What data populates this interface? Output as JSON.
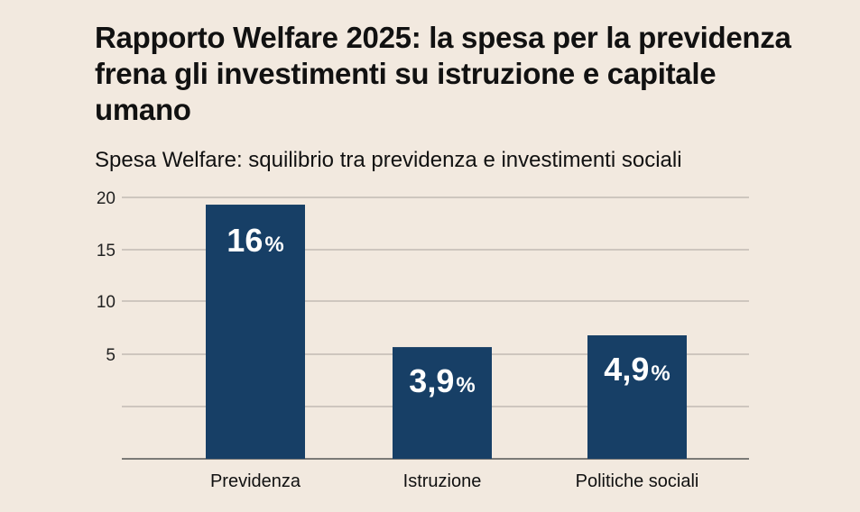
{
  "header": {
    "title": "Rapporto Welfare 2025: la spesa per la previdenza frena gli investimenti su istruzione e capitale umano"
  },
  "chart_data": {
    "type": "bar",
    "title": "Spesa Welfare: squilibrio tra previdenza e investimenti sociali",
    "categories": [
      "Previdenza",
      "Istruzione",
      "Politiche sociali"
    ],
    "values": [
      16,
      3.9,
      4.9
    ],
    "data_labels": [
      {
        "num": "16",
        "unit": "%"
      },
      {
        "num": "3,9",
        "unit": "%"
      },
      {
        "num": "4,9",
        "unit": "%"
      }
    ],
    "yticks": [
      "20",
      "15",
      "10",
      "5"
    ],
    "grid": true,
    "xlabel": "",
    "ylabel": "",
    "colors": {
      "bar": "#173f66",
      "background": "#f2e9df",
      "grid": "#b9b2aa",
      "label": "#ffffff"
    }
  }
}
